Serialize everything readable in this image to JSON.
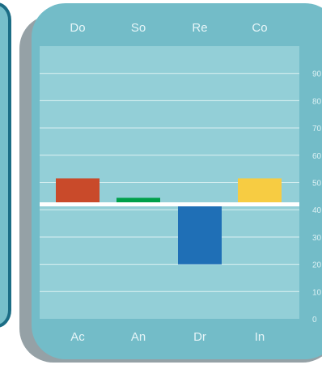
{
  "chart_data": {
    "type": "bar",
    "top_labels": [
      "Do",
      "So",
      "Re",
      "Co"
    ],
    "categories": [
      "Ac",
      "An",
      "Dr",
      "In"
    ],
    "values": [
      51.5,
      44,
      20,
      51.5
    ],
    "baseline": 42,
    "y_ticks": [
      "90",
      "80",
      "70",
      "60",
      "50",
      "40",
      "30",
      "20",
      "10",
      "0"
    ],
    "ylim": [
      0,
      100
    ],
    "grid": true,
    "title": "",
    "xlabel": "",
    "ylabel": "",
    "colors": {
      "bars": [
        "#c94a2a",
        "#00a04a",
        "#1f6fb6",
        "#f7cc42"
      ],
      "panel": "#73bcc8",
      "plot": "#93cfd7",
      "shadow": "#8f9ca1",
      "left_panel": "#76bfca",
      "left_panel_border": "#1b6d85",
      "baseline": "#ffffff",
      "label_text": "#e6f5f8",
      "tick_text": "#dbf1f4"
    }
  }
}
